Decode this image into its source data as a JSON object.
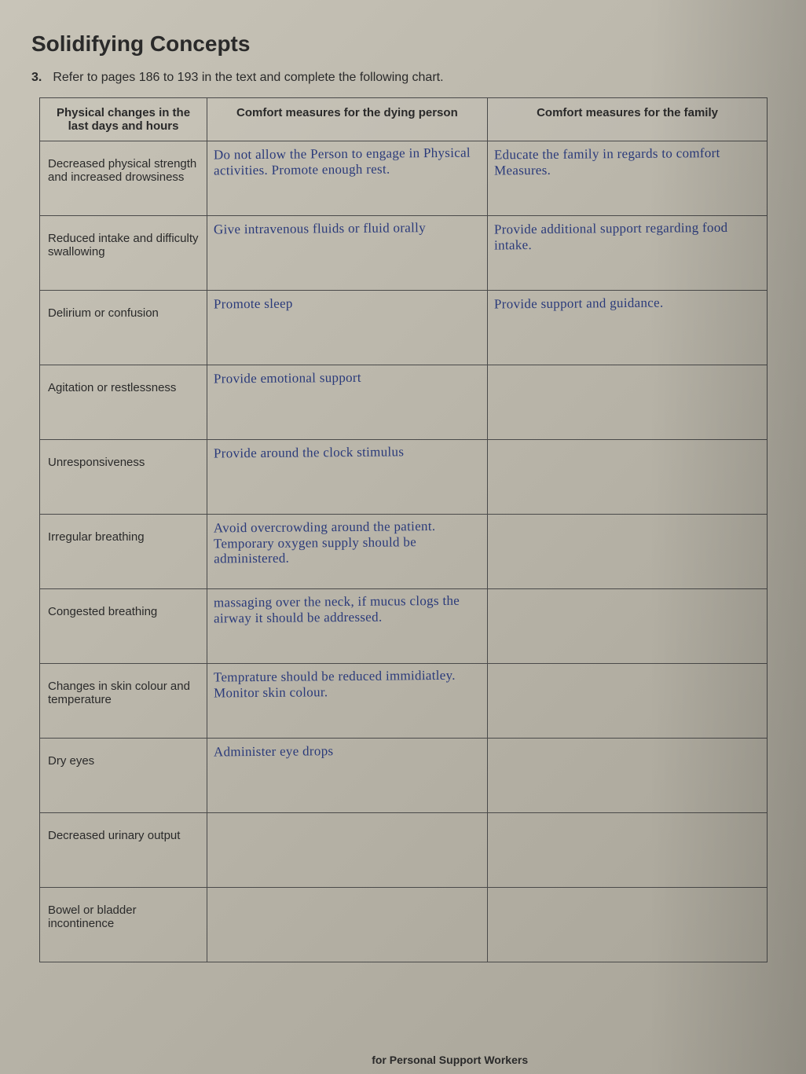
{
  "title": "Solidifying Concepts",
  "question_number": "3.",
  "question_text": "Refer to pages 186 to 193 in the text and complete the following chart.",
  "headers": {
    "col1": "Physical changes in the last days and hours",
    "col2": "Comfort measures for the dying person",
    "col3": "Comfort measures for the family"
  },
  "rows": [
    {
      "label": "Decreased physical strength and increased drowsiness",
      "person": "Do not allow the Person to engage in Physical activities. Promote enough rest.",
      "family": "Educate the family in regards to comfort Measures."
    },
    {
      "label": "Reduced intake and difficulty swallowing",
      "person": "Give intravenous fluids or fluid orally",
      "family": "Provide additional support regarding food intake."
    },
    {
      "label": "Delirium or confusion",
      "person": "Promote sleep",
      "family": "Provide support and guidance."
    },
    {
      "label": "Agitation or restlessness",
      "person": "Provide emotional support",
      "family": ""
    },
    {
      "label": "Unresponsiveness",
      "person": "Provide around the clock stimulus",
      "family": ""
    },
    {
      "label": "Irregular breathing",
      "person": "Avoid overcrowding around the patient. Temporary oxygen supply should be administered.",
      "family": ""
    },
    {
      "label": "Congested breathing",
      "person": "massaging over the neck, if mucus clogs the airway it should be addressed.",
      "family": ""
    },
    {
      "label": "Changes in skin colour and temperature",
      "person": "Temprature should be reduced immidiatley. Monitor skin colour.",
      "family": ""
    },
    {
      "label": "Dry eyes",
      "person": "Administer eye drops",
      "family": ""
    },
    {
      "label": "Decreased urinary output",
      "person": "",
      "family": ""
    },
    {
      "label": "Bowel or bladder incontinence",
      "person": "",
      "family": ""
    }
  ],
  "footer": "for Personal Support Workers",
  "colors": {
    "background": "#c0bcb0",
    "text_print": "#2a2a2a",
    "text_handwritten": "#2a3a7a",
    "border": "#4a4a4a"
  },
  "typography": {
    "title_fontsize": 28,
    "body_fontsize": 16,
    "handwritten_fontsize": 17
  }
}
